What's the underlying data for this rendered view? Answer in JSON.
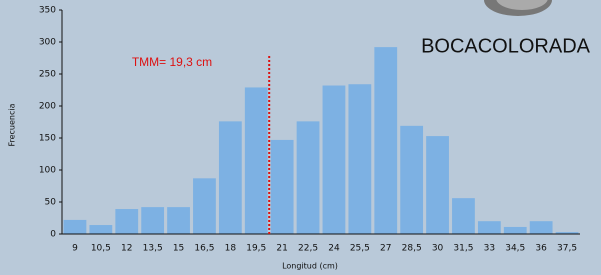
{
  "chart_data": {
    "type": "bar",
    "title": "BOCACOLORADA",
    "annotation": "TMM= 19,3 cm",
    "xlabel": "Longitud (cm)",
    "ylabel": "Frecuencia",
    "categories": [
      "9",
      "10,5",
      "12",
      "13,5",
      "15",
      "16,5",
      "18",
      "19,5",
      "21",
      "22,5",
      "24",
      "25,5",
      "27",
      "28,5",
      "30",
      "31,5",
      "33",
      "34,5",
      "36",
      "37,5"
    ],
    "values": [
      22,
      14,
      39,
      42,
      42,
      87,
      176,
      229,
      147,
      176,
      232,
      234,
      292,
      169,
      153,
      56,
      20,
      11,
      20,
      3
    ],
    "color": "#7db1e3",
    "ylim": [
      0,
      350
    ],
    "yticks": [
      0,
      50,
      100,
      150,
      200,
      250,
      300,
      350
    ]
  }
}
